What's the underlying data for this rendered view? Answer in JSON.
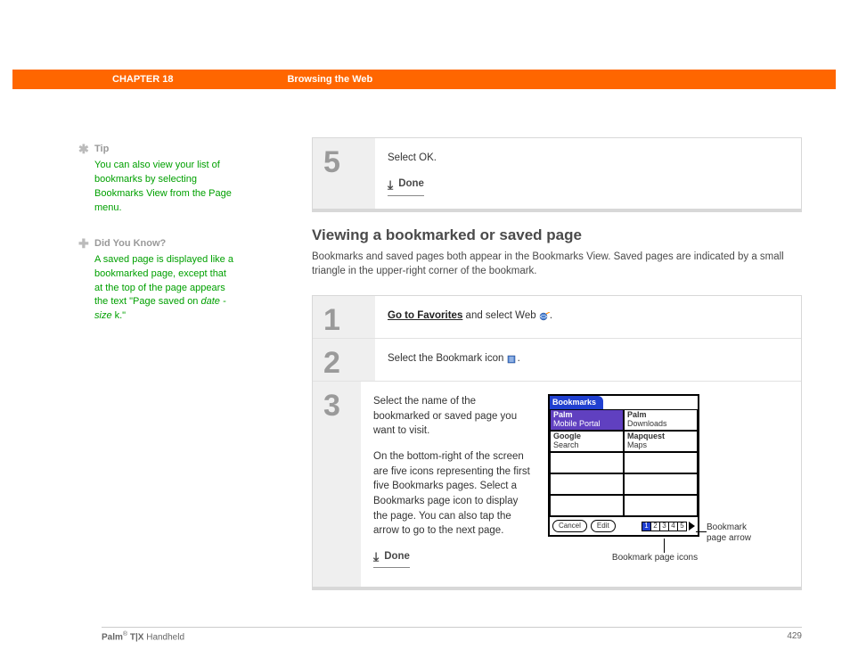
{
  "header": {
    "chapter": "CHAPTER 18",
    "title": "Browsing the Web"
  },
  "sidebar": {
    "tip": {
      "heading": "Tip",
      "body": "You can also view your list of bookmarks by selecting Bookmarks View from the Page menu."
    },
    "dyk": {
      "heading": "Did You Know?",
      "body_1": "A saved page is displayed like a bookmarked page, except that at the top of the page appears the text \"Page saved on ",
      "body_em": "date - size",
      "body_2": " k.\""
    }
  },
  "main": {
    "step5": {
      "num": "5",
      "text": "Select OK.",
      "done": "Done"
    },
    "section": {
      "title": "Viewing a bookmarked or saved page",
      "desc": "Bookmarks and saved pages both appear in the Bookmarks View. Saved pages are indicated by a small triangle in the upper-right corner of the bookmark."
    },
    "step1": {
      "num": "1",
      "link": "Go to Favorites",
      "rest": " and select Web "
    },
    "step2": {
      "num": "2",
      "text": "Select the Bookmark icon "
    },
    "step3": {
      "num": "3",
      "p1": "Select the name of the bookmarked or saved page you want to visit.",
      "p2": "On the bottom-right of the screen are five icons representing the first five Bookmarks pages. Select a Bookmarks page icon to display the page. You can also tap the arrow to go to the next page.",
      "done": "Done"
    },
    "device": {
      "tab": "Bookmarks",
      "cells": [
        {
          "t": "Palm",
          "s": "Mobile Portal",
          "sel": true
        },
        {
          "t": "Palm",
          "s": "Downloads",
          "sel": false
        },
        {
          "t": "Google",
          "s": "Search",
          "sel": false
        },
        {
          "t": "Mapquest",
          "s": "Maps",
          "sel": false
        }
      ],
      "empty_rows": 3,
      "btn_cancel": "Cancel",
      "btn_edit": "Edit",
      "pages": [
        "1",
        "2",
        "3",
        "4",
        "5"
      ],
      "active_page": 0
    },
    "callouts": {
      "arrow": "Bookmark page arrow",
      "icons": "Bookmark page icons"
    }
  },
  "footer": {
    "brand_1": "Palm",
    "brand_reg": "®",
    "brand_2": " T|X",
    "brand_3": " Handheld",
    "page": "429"
  },
  "colors": {
    "orange": "#ff6600",
    "green": "#00a000",
    "blue": "#2040d0",
    "purple": "#6040c0"
  }
}
